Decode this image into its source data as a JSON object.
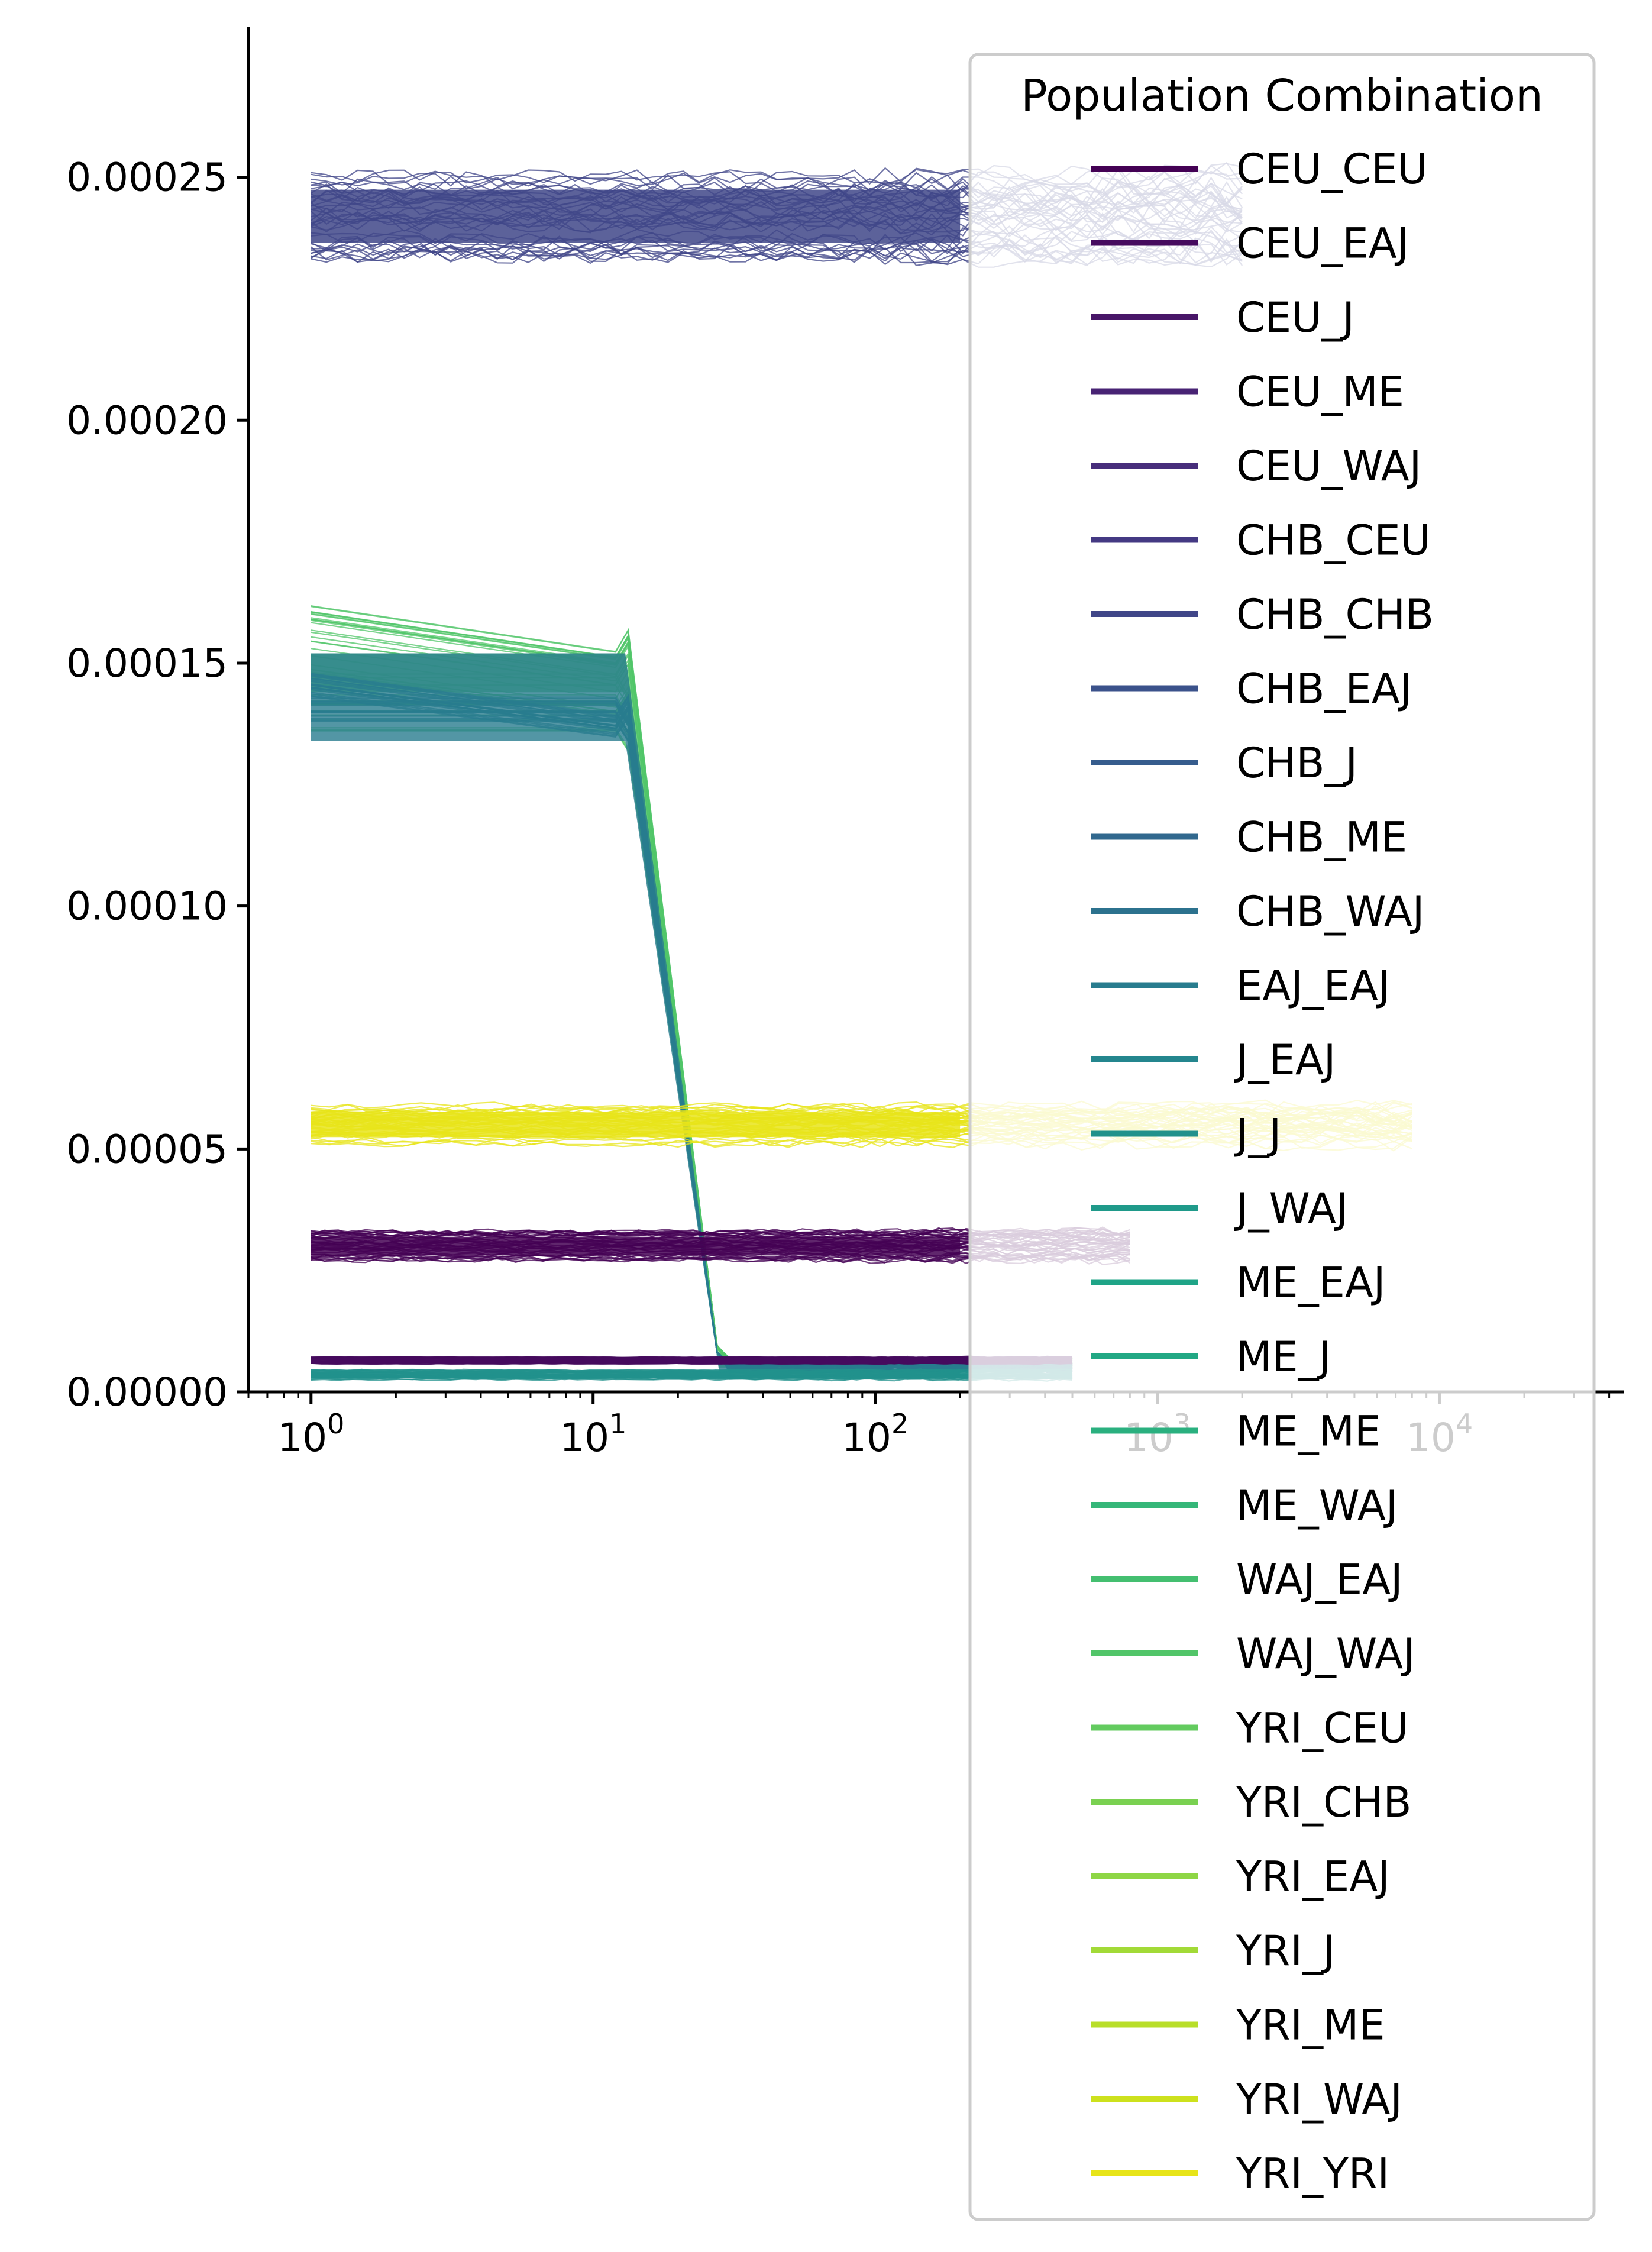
{
  "chart_data": {
    "type": "line",
    "title": "",
    "xlabel": "",
    "ylabel": "",
    "x_scale": "log",
    "xlim": [
      0.6,
      45000
    ],
    "ylim": [
      0,
      0.000281
    ],
    "grid": false,
    "x_ticks": [
      {
        "value": 1,
        "base": "10",
        "exp": "0"
      },
      {
        "value": 10,
        "base": "10",
        "exp": "1"
      },
      {
        "value": 100,
        "base": "10",
        "exp": "2"
      },
      {
        "value": 1000,
        "base": "10",
        "exp": "3"
      },
      {
        "value": 10000,
        "base": "10",
        "exp": "4"
      }
    ],
    "y_ticks": [
      {
        "value": 0.0,
        "label": "0.00000"
      },
      {
        "value": 5e-05,
        "label": "0.00005"
      },
      {
        "value": 0.0001,
        "label": "0.00010"
      },
      {
        "value": 0.00015,
        "label": "0.00015"
      },
      {
        "value": 0.0002,
        "label": "0.00020"
      },
      {
        "value": 0.00025,
        "label": "0.00025"
      }
    ],
    "legend": {
      "title": "Population Combination",
      "placement": "upper right",
      "entries": [
        {
          "name": "CEU_CEU",
          "color": "#440154"
        },
        {
          "name": "CEU_EAJ",
          "color": "#460b5e"
        },
        {
          "name": "CEU_J",
          "color": "#481668"
        },
        {
          "name": "CEU_ME",
          "color": "#482374"
        },
        {
          "name": "CEU_WAJ",
          "color": "#472d7b"
        },
        {
          "name": "CHB_CEU",
          "color": "#443983"
        },
        {
          "name": "CHB_CHB",
          "color": "#404688"
        },
        {
          "name": "CHB_EAJ",
          "color": "#3b528b"
        },
        {
          "name": "CHB_J",
          "color": "#365c8d"
        },
        {
          "name": "CHB_ME",
          "color": "#31688e"
        },
        {
          "name": "CHB_WAJ",
          "color": "#2c728e"
        },
        {
          "name": "EAJ_EAJ",
          "color": "#287c8e"
        },
        {
          "name": "J_EAJ",
          "color": "#24868e"
        },
        {
          "name": "J_J",
          "color": "#21918c"
        },
        {
          "name": "J_WAJ",
          "color": "#1f9a8a"
        },
        {
          "name": "ME_EAJ",
          "color": "#1fa487"
        },
        {
          "name": "ME_J",
          "color": "#22a884"
        },
        {
          "name": "ME_ME",
          "color": "#2ab07f"
        },
        {
          "name": "ME_WAJ",
          "color": "#35b779"
        },
        {
          "name": "WAJ_EAJ",
          "color": "#44bf70"
        },
        {
          "name": "WAJ_WAJ",
          "color": "#52c569"
        },
        {
          "name": "YRI_CEU",
          "color": "#63cb5f"
        },
        {
          "name": "YRI_CHB",
          "color": "#7ad151"
        },
        {
          "name": "YRI_EAJ",
          "color": "#8ed645"
        },
        {
          "name": "YRI_J",
          "color": "#a2da37"
        },
        {
          "name": "YRI_ME",
          "color": "#b8de29"
        },
        {
          "name": "YRI_WAJ",
          "color": "#cde11d"
        },
        {
          "name": "YRI_YRI",
          "color": "#e7e419"
        }
      ]
    },
    "series_bands": [
      {
        "name": "CHB_CHB",
        "color": "#404688",
        "x_start": 1,
        "x_end": 2000,
        "center": 0.000242,
        "spread": 1.7e-05,
        "note_tail_fade_x": 200
      },
      {
        "name": "WAJ_WAJ",
        "color": "#52c569",
        "x_start": 1,
        "x_drop_start": 13,
        "x_drop_end": 28,
        "y_before_center": 0.000148,
        "y_before_spread": 2.8e-05,
        "y_after": 6e-06,
        "x_end": 500
      },
      {
        "name": "EAJ_EAJ",
        "color": "#287c8e",
        "x_start": 1,
        "x_drop_start": 13,
        "x_drop_end": 28,
        "y_before_center": 0.000143,
        "y_before_spread": 1e-05,
        "y_after": 5e-06,
        "x_end": 500
      },
      {
        "name": "YRI_YRI",
        "color": "#e7e419",
        "x_start": 1,
        "x_end": 8000,
        "center": 5.5e-05,
        "spread": 8e-06
      },
      {
        "name": "CEU_CEU",
        "color": "#440154",
        "x_start": 1,
        "x_end": 800,
        "center": 3e-05,
        "spread": 6e-06
      },
      {
        "name": "CEU_EAJ",
        "color": "#460b5e",
        "x_start": 1,
        "x_end": 500,
        "center": 6.5e-06,
        "spread": 1.5e-06
      },
      {
        "name": "J_J",
        "color": "#21918c",
        "x_start": 1,
        "x_end": 500,
        "center": 3.5e-06,
        "spread": 2e-06
      }
    ]
  }
}
